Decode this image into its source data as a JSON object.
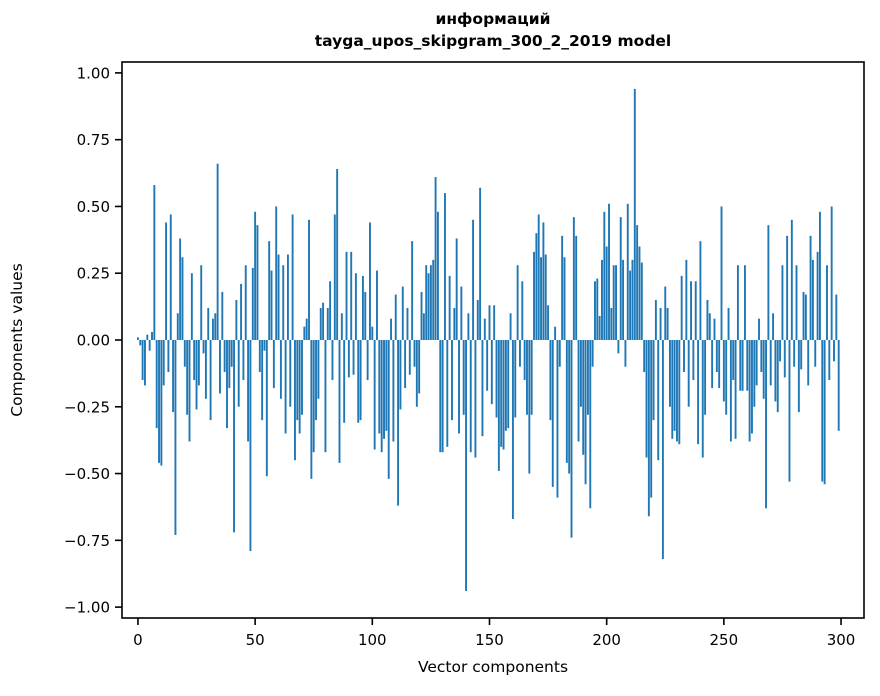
{
  "figure": {
    "title_line1": "информаций",
    "title_line2": "tayga_upos_skipgram_300_2_2019 model",
    "xlabel": "Vector components",
    "ylabel": "Components values"
  },
  "colors": {
    "bar": "#1f77b4",
    "text": "#000000",
    "spine": "#000000",
    "background": "#ffffff"
  },
  "chart_data": {
    "type": "bar",
    "title": "информаций — tayga_upos_skipgram_300_2_2019 model",
    "xlabel": "Vector components",
    "ylabel": "Components values",
    "grid": false,
    "legend": null,
    "bar_color": "#1f77b4",
    "n_components": 300,
    "x_ticks": [
      0,
      50,
      100,
      150,
      200,
      250,
      300
    ],
    "x_tick_labels": [
      "0",
      "50",
      "100",
      "150",
      "200",
      "250",
      "300"
    ],
    "y_ticks": [
      1.0,
      0.75,
      0.5,
      0.25,
      0.0,
      -0.25,
      -0.5,
      -0.75,
      -1.0
    ],
    "y_tick_labels": [
      "1.00",
      "0.75",
      "0.50",
      "0.25",
      "0.00",
      "−0.25",
      "−0.50",
      "−0.75",
      "−1.00"
    ],
    "xlim": [
      -6.8,
      309.8
    ],
    "ylim": [
      -1.0408,
      1.0408
    ],
    "ymax_value": 0.94,
    "ymin_value": -0.94,
    "values": [
      0.01,
      -0.02,
      -0.15,
      -0.17,
      0.02,
      -0.04,
      0.03,
      0.58,
      -0.33,
      -0.46,
      -0.47,
      -0.17,
      0.44,
      -0.12,
      0.47,
      -0.27,
      -0.73,
      0.1,
      0.38,
      0.31,
      -0.1,
      -0.28,
      -0.38,
      0.25,
      -0.15,
      -0.26,
      -0.17,
      0.28,
      -0.05,
      -0.22,
      0.12,
      -0.3,
      0.08,
      0.1,
      0.66,
      -0.2,
      0.18,
      -0.12,
      -0.33,
      -0.18,
      -0.1,
      -0.72,
      0.15,
      -0.25,
      0.21,
      -0.15,
      0.28,
      -0.38,
      -0.79,
      0.27,
      0.48,
      0.43,
      -0.12,
      -0.3,
      -0.04,
      -0.51,
      0.37,
      0.26,
      -0.18,
      0.5,
      0.32,
      -0.22,
      0.28,
      -0.35,
      0.32,
      -0.25,
      0.47,
      -0.45,
      -0.3,
      -0.35,
      -0.28,
      0.05,
      0.08,
      0.45,
      -0.52,
      -0.42,
      -0.3,
      -0.22,
      0.12,
      0.14,
      -0.42,
      0.12,
      0.22,
      -0.15,
      0.47,
      0.64,
      -0.46,
      0.1,
      -0.31,
      0.33,
      -0.14,
      0.33,
      -0.13,
      0.25,
      -0.31,
      -0.3,
      0.24,
      0.18,
      -0.15,
      0.44,
      0.05,
      -0.41,
      0.26,
      -0.35,
      -0.42,
      -0.37,
      -0.34,
      -0.52,
      0.08,
      -0.38,
      0.17,
      -0.62,
      -0.26,
      0.2,
      -0.18,
      0.12,
      -0.13,
      0.37,
      -0.1,
      -0.25,
      -0.2,
      0.18,
      0.1,
      0.28,
      0.25,
      0.28,
      0.3,
      0.61,
      0.48,
      -0.42,
      -0.42,
      0.55,
      -0.4,
      0.24,
      -0.3,
      0.12,
      0.38,
      -0.35,
      0.2,
      -0.28,
      -0.94,
      0.1,
      -0.42,
      0.45,
      -0.44,
      0.15,
      0.57,
      -0.36,
      0.08,
      -0.19,
      0.13,
      -0.24,
      0.13,
      -0.29,
      -0.49,
      -0.4,
      -0.41,
      -0.34,
      -0.33,
      0.1,
      -0.67,
      -0.29,
      0.28,
      -0.1,
      0.22,
      -0.15,
      -0.28,
      -0.5,
      -0.28,
      0.33,
      0.4,
      0.47,
      0.31,
      0.44,
      0.32,
      0.13,
      -0.3,
      -0.55,
      0.05,
      -0.59,
      -0.1,
      0.39,
      0.31,
      -0.46,
      -0.5,
      -0.74,
      0.46,
      0.39,
      -0.38,
      -0.25,
      -0.43,
      -0.54,
      -0.28,
      -0.63,
      -0.1,
      0.22,
      0.23,
      0.09,
      0.3,
      0.48,
      0.35,
      0.51,
      0.12,
      0.28,
      0.28,
      -0.05,
      0.46,
      0.3,
      -0.1,
      0.51,
      0.26,
      0.3,
      0.94,
      0.43,
      0.35,
      0.29,
      -0.12,
      -0.44,
      -0.66,
      -0.59,
      -0.3,
      0.15,
      -0.45,
      0.12,
      -0.82,
      0.2,
      0.12,
      -0.25,
      -0.37,
      -0.34,
      -0.38,
      -0.39,
      0.24,
      -0.12,
      0.3,
      -0.25,
      0.22,
      -0.15,
      0.22,
      -0.39,
      0.37,
      -0.44,
      -0.28,
      0.15,
      0.1,
      -0.18,
      0.08,
      -0.12,
      -0.18,
      0.5,
      -0.23,
      -0.28,
      0.12,
      -0.38,
      -0.15,
      -0.37,
      0.28,
      -0.19,
      -0.19,
      0.28,
      -0.19,
      -0.38,
      -0.35,
      -0.25,
      -0.17,
      0.08,
      -0.12,
      -0.22,
      -0.63,
      0.43,
      -0.17,
      0.1,
      -0.23,
      -0.27,
      -0.08,
      0.28,
      -0.14,
      0.39,
      -0.53,
      0.45,
      -0.1,
      0.28,
      -0.27,
      -0.11,
      0.18,
      0.17,
      -0.17,
      0.39,
      0.3,
      -0.1,
      0.33,
      0.48,
      -0.53,
      -0.54,
      0.28,
      -0.15,
      0.5,
      -0.08,
      0.17,
      -0.34
    ]
  }
}
